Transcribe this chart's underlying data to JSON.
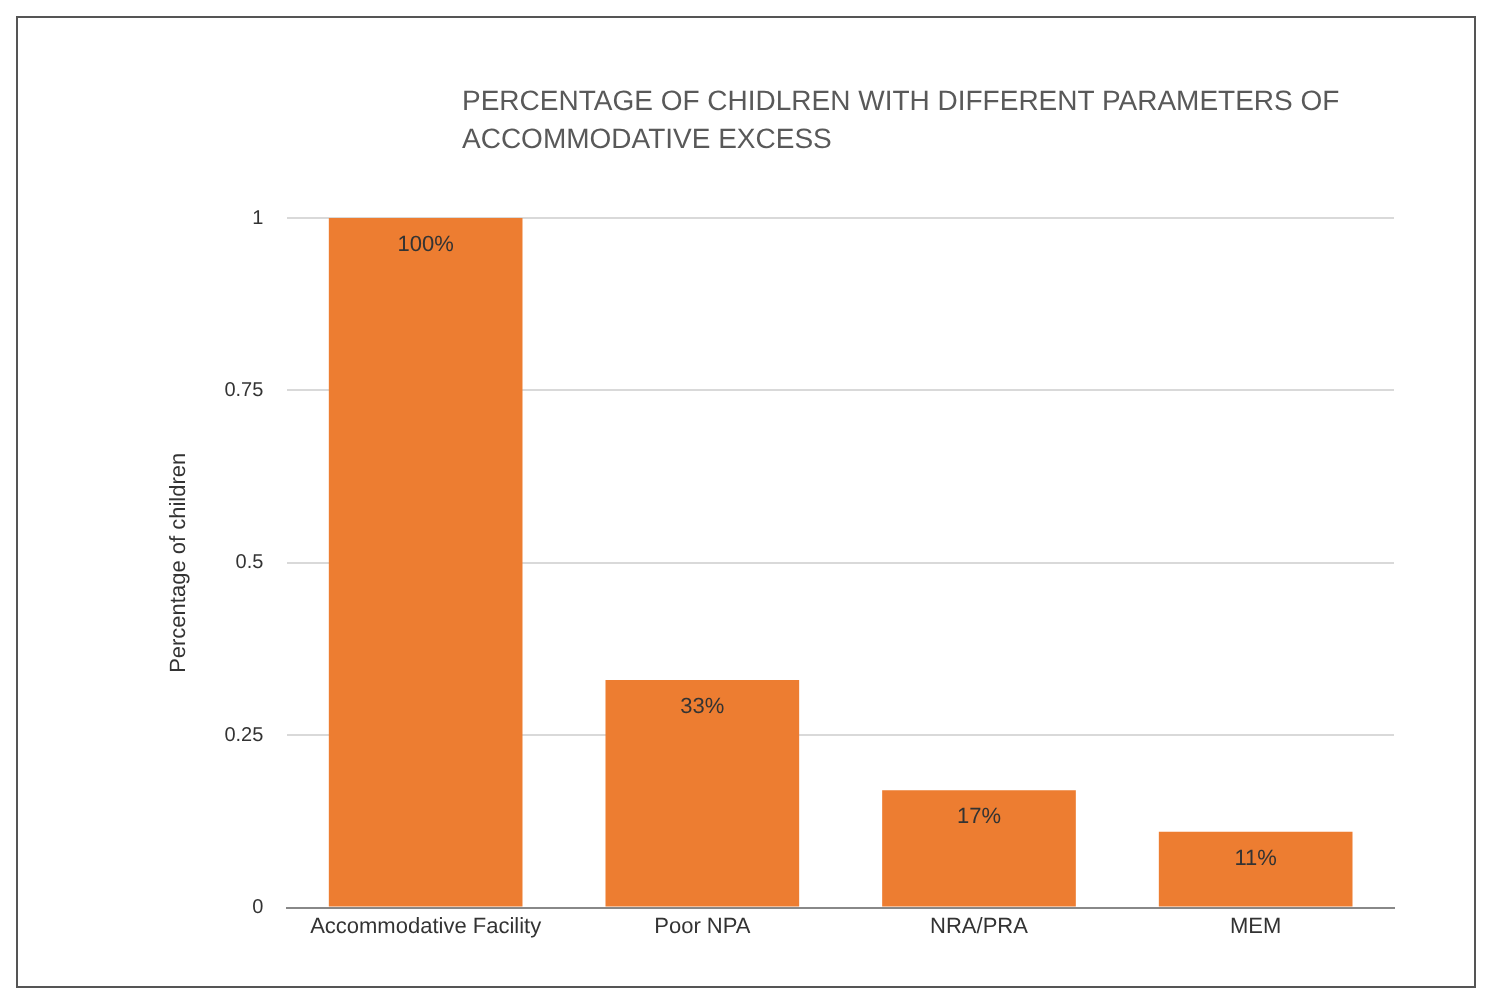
{
  "chart_data": {
    "type": "bar",
    "title": "PERCENTAGE OF CHIDLREN WITH DIFFERENT PARAMETERS OF ACCOMMODATIVE EXCESS",
    "ylabel": "Percentage of children",
    "categories": [
      "Accommodative Facility",
      "Poor NPA",
      "NRA/PRA",
      "MEM"
    ],
    "values": [
      1,
      0.33,
      0.17,
      0.11
    ],
    "value_labels": [
      "100%",
      "33%",
      "17%",
      "11%"
    ],
    "color": "#ed7d31",
    "ylim": [
      0,
      1
    ],
    "yticks": [
      0,
      0.25,
      0.5,
      0.75,
      1
    ],
    "grid": "y"
  }
}
